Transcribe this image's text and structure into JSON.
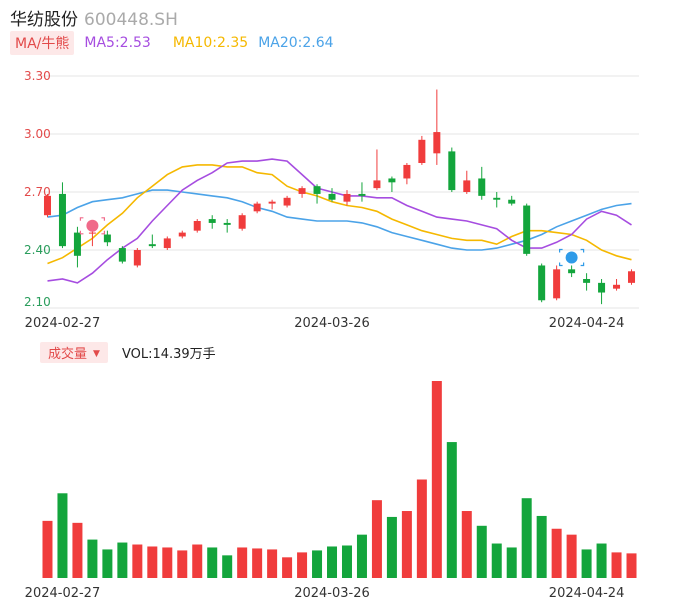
{
  "header": {
    "name": "华纺股份",
    "code": "600448.SH"
  },
  "ma_legend": {
    "button": "MA/牛熊",
    "ma5": {
      "label": "MA5:2.53",
      "color": "#a64de0"
    },
    "ma10": {
      "label": "MA10:2.35",
      "color": "#f5b800"
    },
    "ma20": {
      "label": "MA20:2.64",
      "color": "#4ba3e8"
    }
  },
  "volume_header": {
    "button": "成交量",
    "caret": "▼",
    "label": "VOL:14.39万手"
  },
  "colors": {
    "up": "#f03c3c",
    "down": "#13a53c",
    "grid": "#e6e6e6"
  },
  "chart_data": [
    {
      "type": "candlestick",
      "ylim": [
        2.1,
        3.3
      ],
      "yticks": [
        "3.30",
        "3.00",
        "2.70",
        "2.40",
        "2.10"
      ],
      "xtick_labels": [
        "2024-02-27",
        "2024-03-26",
        "2024-04-24"
      ],
      "xtick_index": [
        1,
        19,
        36
      ],
      "marker_up_index": 3,
      "marker_down_index": 35,
      "candles": [
        {
          "o": 2.58,
          "c": 2.68,
          "h": 2.69,
          "l": 2.57
        },
        {
          "o": 2.69,
          "c": 2.42,
          "h": 2.75,
          "l": 2.41
        },
        {
          "o": 2.49,
          "c": 2.37,
          "h": 2.52,
          "l": 2.31
        },
        {
          "o": 2.49,
          "c": 2.49,
          "h": 2.52,
          "l": 2.42
        },
        {
          "o": 2.48,
          "c": 2.44,
          "h": 2.5,
          "l": 2.42
        },
        {
          "o": 2.41,
          "c": 2.34,
          "h": 2.42,
          "l": 2.33
        },
        {
          "o": 2.32,
          "c": 2.4,
          "h": 2.41,
          "l": 2.31
        },
        {
          "o": 2.43,
          "c": 2.42,
          "h": 2.48,
          "l": 2.41
        },
        {
          "o": 2.41,
          "c": 2.46,
          "h": 2.47,
          "l": 2.4
        },
        {
          "o": 2.47,
          "c": 2.49,
          "h": 2.5,
          "l": 2.46
        },
        {
          "o": 2.5,
          "c": 2.55,
          "h": 2.56,
          "l": 2.49
        },
        {
          "o": 2.56,
          "c": 2.54,
          "h": 2.58,
          "l": 2.51
        },
        {
          "o": 2.54,
          "c": 2.53,
          "h": 2.56,
          "l": 2.49
        },
        {
          "o": 2.51,
          "c": 2.58,
          "h": 2.59,
          "l": 2.5
        },
        {
          "o": 2.6,
          "c": 2.64,
          "h": 2.65,
          "l": 2.59
        },
        {
          "o": 2.64,
          "c": 2.65,
          "h": 2.66,
          "l": 2.61
        },
        {
          "o": 2.63,
          "c": 2.67,
          "h": 2.68,
          "l": 2.62
        },
        {
          "o": 2.69,
          "c": 2.72,
          "h": 2.73,
          "l": 2.67
        },
        {
          "o": 2.73,
          "c": 2.69,
          "h": 2.74,
          "l": 2.64
        },
        {
          "o": 2.69,
          "c": 2.66,
          "h": 2.72,
          "l": 2.65
        },
        {
          "o": 2.65,
          "c": 2.69,
          "h": 2.71,
          "l": 2.63
        },
        {
          "o": 2.69,
          "c": 2.68,
          "h": 2.75,
          "l": 2.65
        },
        {
          "o": 2.72,
          "c": 2.76,
          "h": 2.92,
          "l": 2.71
        },
        {
          "o": 2.77,
          "c": 2.75,
          "h": 2.78,
          "l": 2.7
        },
        {
          "o": 2.77,
          "c": 2.84,
          "h": 2.85,
          "l": 2.74
        },
        {
          "o": 2.85,
          "c": 2.97,
          "h": 2.99,
          "l": 2.84
        },
        {
          "o": 2.9,
          "c": 3.01,
          "h": 3.23,
          "l": 2.84
        },
        {
          "o": 2.91,
          "c": 2.71,
          "h": 2.93,
          "l": 2.7
        },
        {
          "o": 2.7,
          "c": 2.76,
          "h": 2.81,
          "l": 2.69
        },
        {
          "o": 2.77,
          "c": 2.68,
          "h": 2.83,
          "l": 2.66
        },
        {
          "o": 2.67,
          "c": 2.66,
          "h": 2.7,
          "l": 2.62
        },
        {
          "o": 2.66,
          "c": 2.64,
          "h": 2.68,
          "l": 2.63
        },
        {
          "o": 2.63,
          "c": 2.38,
          "h": 2.64,
          "l": 2.37
        },
        {
          "o": 2.32,
          "c": 2.14,
          "h": 2.33,
          "l": 2.13
        },
        {
          "o": 2.15,
          "c": 2.3,
          "h": 2.32,
          "l": 2.14
        },
        {
          "o": 2.3,
          "c": 2.28,
          "h": 2.32,
          "l": 2.26
        },
        {
          "o": 2.25,
          "c": 2.23,
          "h": 2.28,
          "l": 2.19
        },
        {
          "o": 2.23,
          "c": 2.18,
          "h": 2.25,
          "l": 2.12
        },
        {
          "o": 2.2,
          "c": 2.22,
          "h": 2.25,
          "l": 2.19
        },
        {
          "o": 2.23,
          "c": 2.29,
          "h": 2.3,
          "l": 2.22
        }
      ],
      "ma5": [
        2.24,
        2.25,
        2.23,
        2.28,
        2.35,
        2.41,
        2.46,
        2.55,
        2.63,
        2.71,
        2.76,
        2.8,
        2.85,
        2.86,
        2.86,
        2.87,
        2.86,
        2.79,
        2.72,
        2.7,
        2.68,
        2.68,
        2.67,
        2.67,
        2.63,
        2.6,
        2.57,
        2.56,
        2.55,
        2.53,
        2.51,
        2.45,
        2.41,
        2.41,
        2.44,
        2.48,
        2.56,
        2.6,
        2.58,
        2.53
      ],
      "ma10": [
        2.33,
        2.36,
        2.41,
        2.46,
        2.53,
        2.59,
        2.67,
        2.73,
        2.79,
        2.83,
        2.84,
        2.84,
        2.83,
        2.83,
        2.8,
        2.79,
        2.73,
        2.7,
        2.68,
        2.65,
        2.63,
        2.62,
        2.6,
        2.56,
        2.53,
        2.5,
        2.48,
        2.46,
        2.45,
        2.45,
        2.43,
        2.47,
        2.5,
        2.5,
        2.49,
        2.48,
        2.45,
        2.4,
        2.37,
        2.35
      ],
      "ma20": [
        2.57,
        2.58,
        2.62,
        2.65,
        2.66,
        2.67,
        2.69,
        2.71,
        2.71,
        2.7,
        2.69,
        2.68,
        2.67,
        2.65,
        2.62,
        2.6,
        2.57,
        2.56,
        2.55,
        2.55,
        2.55,
        2.54,
        2.52,
        2.49,
        2.47,
        2.45,
        2.43,
        2.41,
        2.4,
        2.4,
        2.41,
        2.43,
        2.45,
        2.48,
        2.52,
        2.55,
        2.58,
        2.61,
        2.63,
        2.64
      ]
    },
    {
      "type": "bar",
      "name": "成交量",
      "xtick_labels": [
        "2024-02-27",
        "2024-03-26",
        "2024-04-24"
      ],
      "xtick_index": [
        1,
        19,
        36
      ],
      "values": [
        5.8,
        8.6,
        5.6,
        3.9,
        2.9,
        3.6,
        3.4,
        3.2,
        3.1,
        2.8,
        3.4,
        3.1,
        2.3,
        3.1,
        3.0,
        2.9,
        2.1,
        2.6,
        2.8,
        3.2,
        3.3,
        4.4,
        7.9,
        6.2,
        6.8,
        10.0,
        20.0,
        13.8,
        6.8,
        5.3,
        3.5,
        3.1,
        8.1,
        6.3,
        5.0,
        4.4,
        2.9,
        3.5,
        2.6,
        2.5
      ],
      "directions": [
        "up",
        "down",
        "up",
        "down",
        "down",
        "down",
        "up",
        "up",
        "up",
        "up",
        "up",
        "down",
        "down",
        "up",
        "up",
        "up",
        "up",
        "up",
        "down",
        "down",
        "down",
        "down",
        "up",
        "down",
        "up",
        "up",
        "up",
        "down",
        "up",
        "down",
        "down",
        "down",
        "down",
        "down",
        "up",
        "up",
        "down",
        "down",
        "up",
        "up"
      ]
    }
  ]
}
